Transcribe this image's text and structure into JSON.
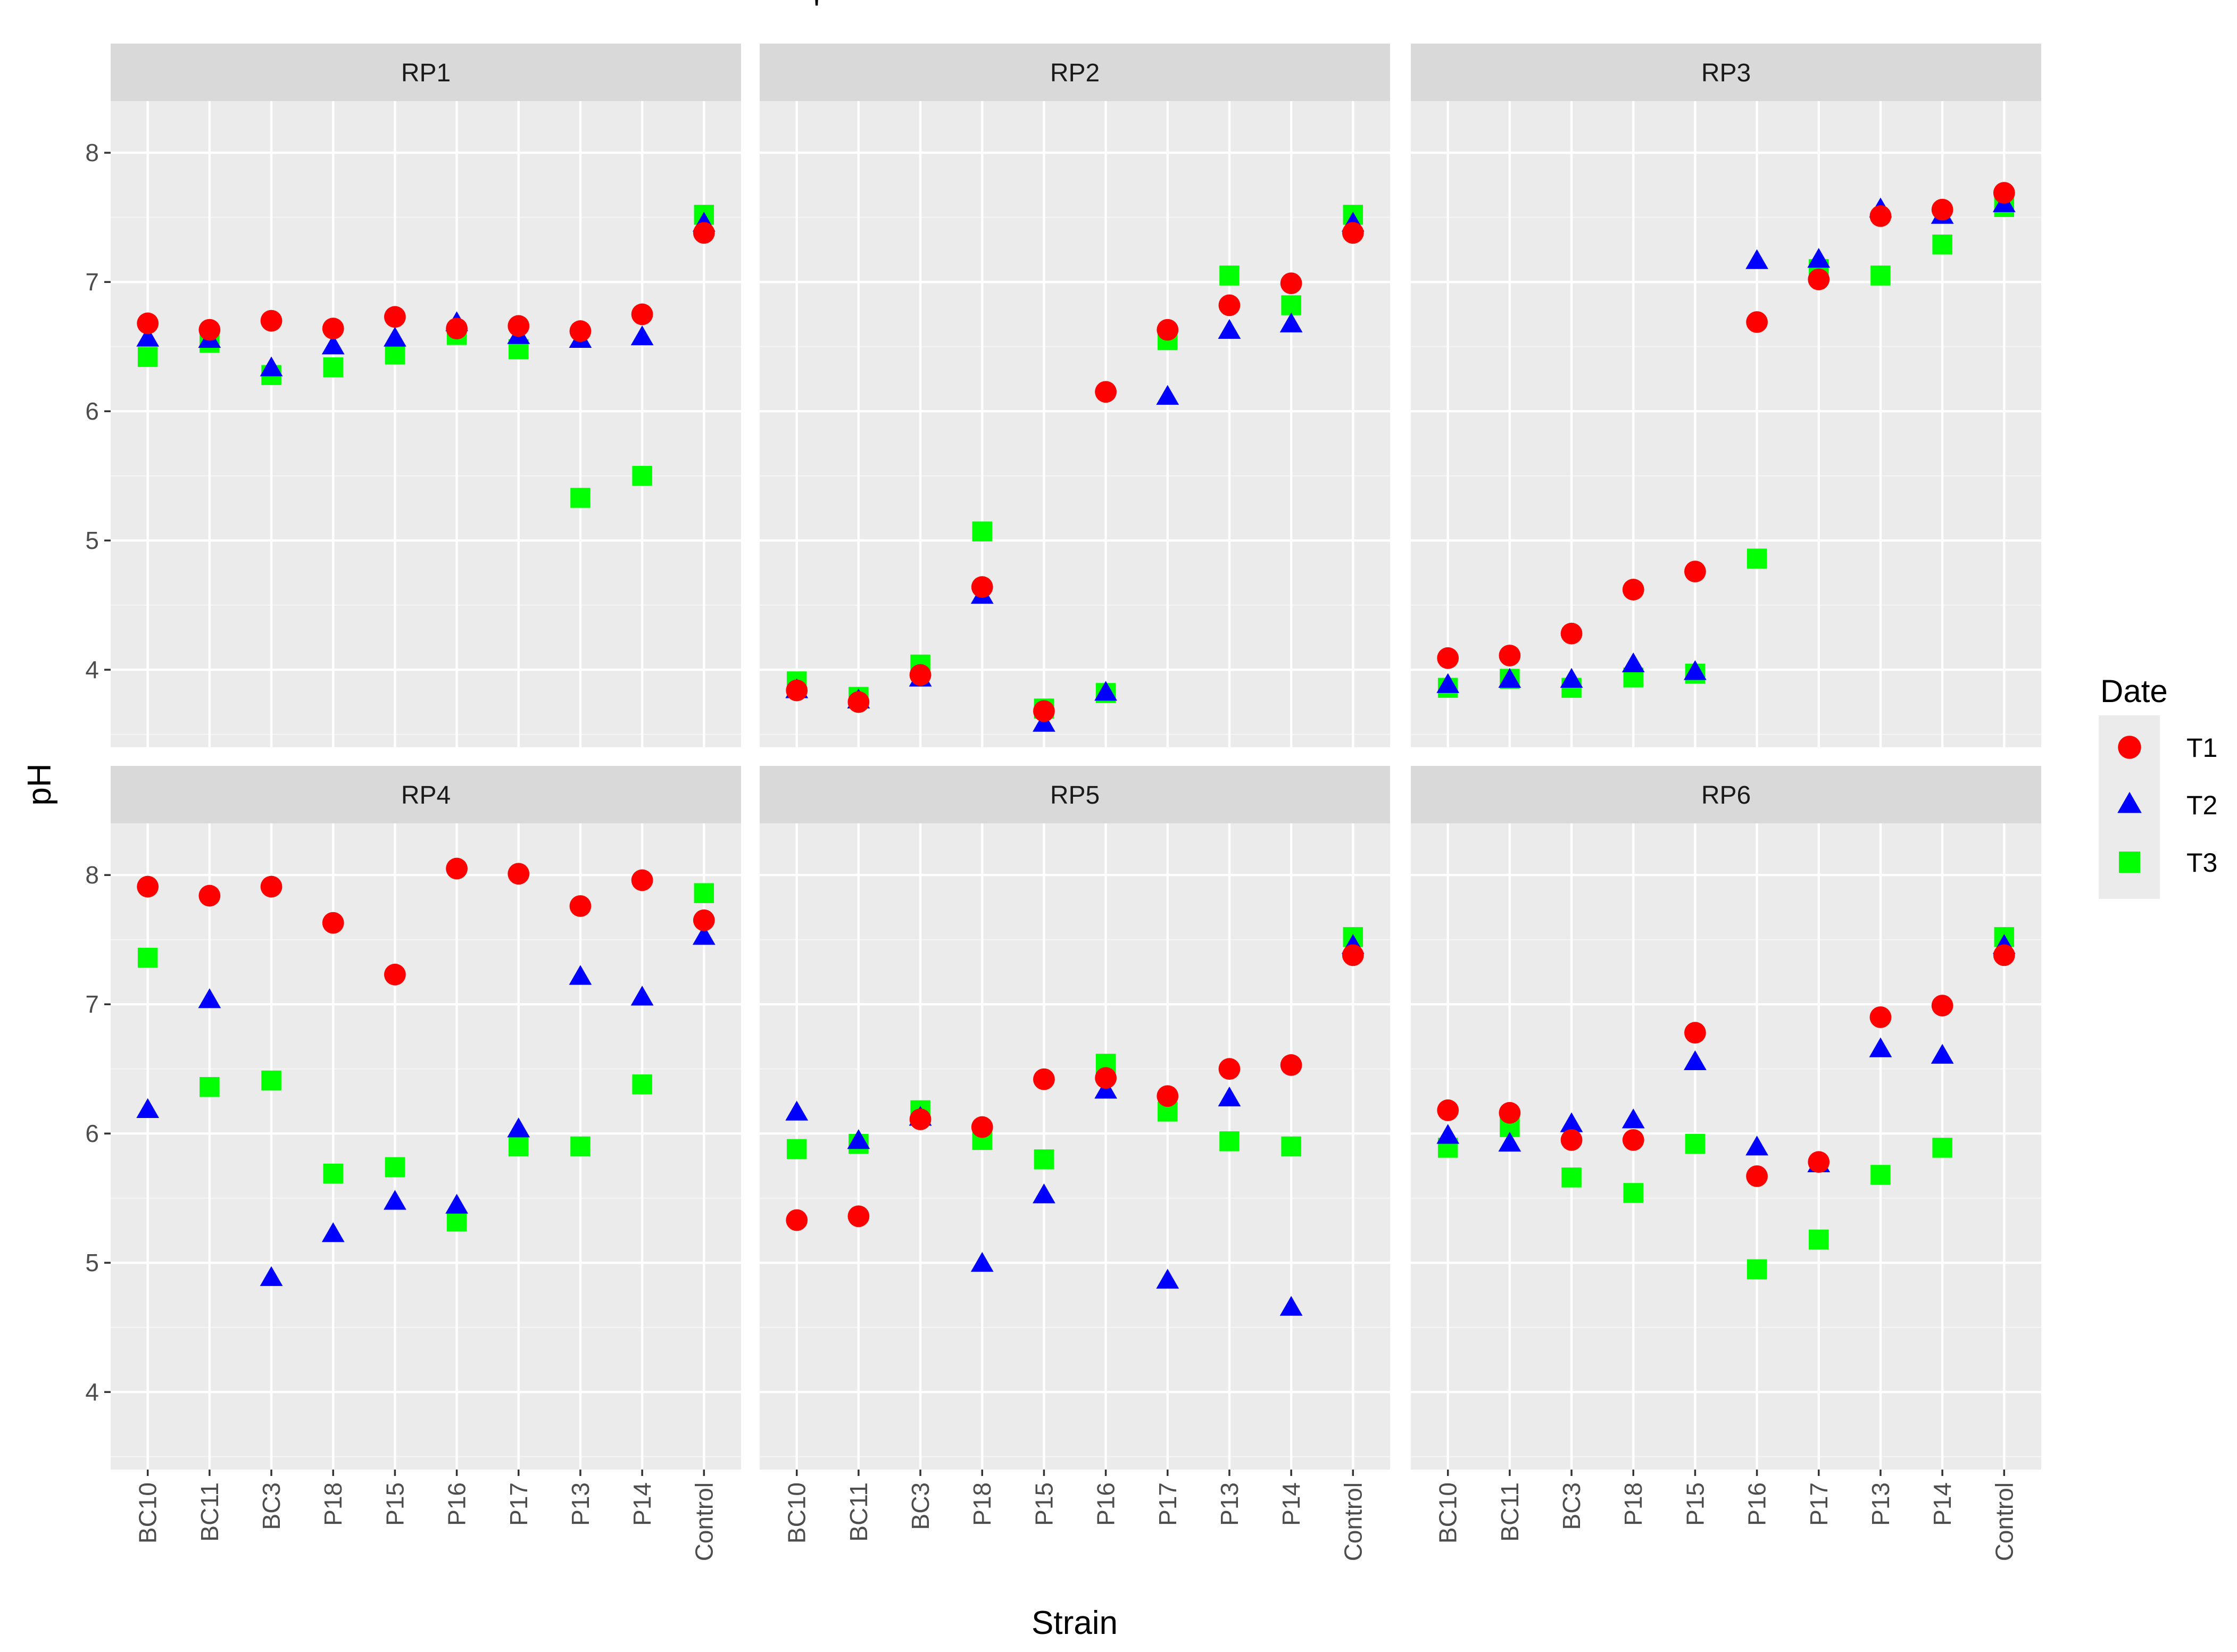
{
  "chart_data": {
    "type": "scatter",
    "title": "'",
    "xlabel": "Strain",
    "ylabel": "pH",
    "ylim": [
      3.4,
      8.4
    ],
    "yticks": [
      4,
      5,
      6,
      7,
      8
    ],
    "categories": [
      "BC10",
      "BC11",
      "BC3",
      "P18",
      "P15",
      "P16",
      "P17",
      "P13",
      "P14",
      "Control"
    ],
    "legend": {
      "title": "Date",
      "position": "right",
      "entries": [
        {
          "name": "T1",
          "shape": "circle",
          "color": "#ff0000"
        },
        {
          "name": "T2",
          "shape": "triangle",
          "color": "#0000ff"
        },
        {
          "name": "T3",
          "shape": "square",
          "color": "#00ff00"
        }
      ]
    },
    "panels": [
      {
        "name": "RP1",
        "series": [
          {
            "name": "T1",
            "values": [
              6.68,
              6.63,
              6.7,
              6.64,
              6.73,
              6.64,
              6.66,
              6.62,
              6.75,
              7.38
            ]
          },
          {
            "name": "T2",
            "values": [
              6.56,
              6.55,
              6.33,
              6.5,
              6.56,
              6.68,
              6.58,
              6.55,
              6.57,
              7.45
            ]
          },
          {
            "name": "T3",
            "values": [
              6.42,
              6.53,
              6.28,
              6.34,
              6.44,
              6.59,
              6.48,
              5.33,
              5.5,
              7.52
            ]
          }
        ]
      },
      {
        "name": "RP2",
        "series": [
          {
            "name": "T1",
            "values": [
              3.84,
              3.75,
              3.96,
              4.64,
              3.68,
              6.15,
              6.63,
              6.82,
              6.99,
              7.38
            ]
          },
          {
            "name": "T2",
            "values": [
              3.84,
              3.76,
              3.93,
              4.57,
              3.58,
              3.82,
              6.11,
              6.62,
              6.67,
              7.45
            ]
          },
          {
            "name": "T3",
            "values": [
              3.91,
              3.79,
              4.04,
              5.07,
              3.7,
              3.82,
              6.55,
              7.05,
              6.82,
              7.52
            ]
          }
        ]
      },
      {
        "name": "RP3",
        "series": [
          {
            "name": "T1",
            "values": [
              4.09,
              4.11,
              4.28,
              4.62,
              4.76,
              6.69,
              7.02,
              7.51,
              7.56,
              7.69
            ]
          },
          {
            "name": "T2",
            "values": [
              3.88,
              3.92,
              3.92,
              4.04,
              3.98,
              7.16,
              7.17,
              7.56,
              7.51,
              7.6
            ]
          },
          {
            "name": "T3",
            "values": [
              3.86,
              3.93,
              3.86,
              3.94,
              3.97,
              4.86,
              7.1,
              7.05,
              7.29,
              7.58
            ]
          }
        ]
      },
      {
        "name": "RP4",
        "series": [
          {
            "name": "T1",
            "values": [
              7.91,
              7.84,
              7.91,
              7.63,
              7.23,
              8.05,
              8.01,
              7.76,
              7.96,
              7.65
            ]
          },
          {
            "name": "T2",
            "values": [
              6.18,
              7.03,
              4.88,
              5.22,
              5.47,
              5.44,
              6.03,
              7.21,
              7.05,
              7.52
            ]
          },
          {
            "name": "T3",
            "values": [
              7.36,
              6.36,
              6.41,
              5.69,
              5.74,
              5.32,
              5.9,
              5.9,
              6.38,
              7.86
            ]
          }
        ]
      },
      {
        "name": "RP5",
        "series": [
          {
            "name": "T1",
            "values": [
              5.33,
              5.36,
              6.11,
              6.05,
              6.42,
              6.43,
              6.29,
              6.5,
              6.53,
              7.38
            ]
          },
          {
            "name": "T2",
            "values": [
              6.16,
              5.94,
              6.12,
              4.99,
              5.52,
              6.33,
              4.86,
              6.27,
              4.65,
              7.45
            ]
          },
          {
            "name": "T3",
            "values": [
              5.88,
              5.92,
              6.18,
              5.95,
              5.8,
              6.54,
              6.17,
              5.94,
              5.9,
              7.52
            ]
          }
        ]
      },
      {
        "name": "RP6",
        "series": [
          {
            "name": "T1",
            "values": [
              6.18,
              6.16,
              5.95,
              5.95,
              6.78,
              5.67,
              5.78,
              6.9,
              6.99,
              7.38
            ]
          },
          {
            "name": "T2",
            "values": [
              5.98,
              5.92,
              6.07,
              6.1,
              6.55,
              5.89,
              5.76,
              6.65,
              6.6,
              7.45
            ]
          },
          {
            "name": "T3",
            "values": [
              5.89,
              6.05,
              5.66,
              5.54,
              5.92,
              4.95,
              5.18,
              5.68,
              5.89,
              7.52
            ]
          }
        ]
      }
    ]
  }
}
